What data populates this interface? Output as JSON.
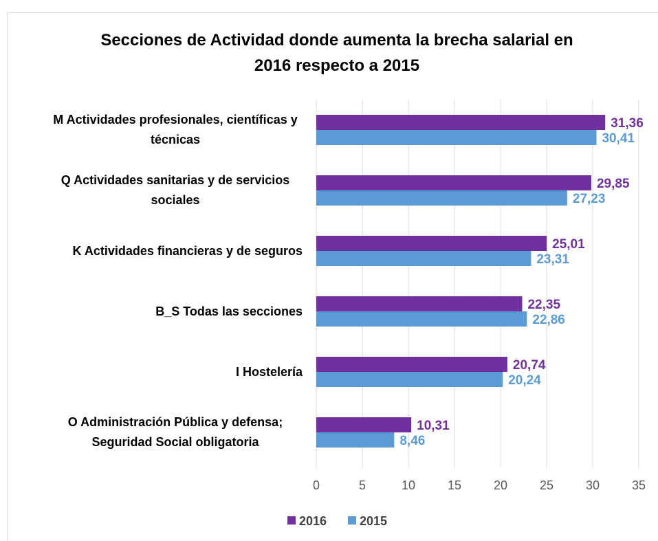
{
  "chart_data": {
    "type": "barh",
    "title": "Secciones de Actividad donde aumenta la brecha salarial en 2016 respecto a 2015",
    "categories": [
      "M Actividades profesionales, científicas y técnicas",
      "Q Actividades sanitarias y de servicios sociales",
      "K Actividades financieras y de seguros",
      "B_S Todas las secciones",
      "I Hostelería",
      "O Administración Pública y defensa; Seguridad Social obligatoria"
    ],
    "series": [
      {
        "name": "2016",
        "color": "#7030a0",
        "values": [
          31.36,
          29.85,
          25.01,
          22.35,
          20.74,
          10.31
        ],
        "value_labels": [
          "31,36",
          "29,85",
          "25,01",
          "22,35",
          "20,74",
          "10,31"
        ]
      },
      {
        "name": "2015",
        "color": "#5b9bd5",
        "values": [
          30.41,
          27.23,
          23.31,
          22.86,
          20.24,
          8.46
        ],
        "value_labels": [
          "30,41",
          "27,23",
          "23,31",
          "22,86",
          "20,24",
          "8,46"
        ]
      }
    ],
    "xlim": [
      0,
      35
    ],
    "xticks": [
      0,
      5,
      10,
      15,
      20,
      25,
      30,
      35
    ],
    "grid": true,
    "legend": "bottom"
  }
}
